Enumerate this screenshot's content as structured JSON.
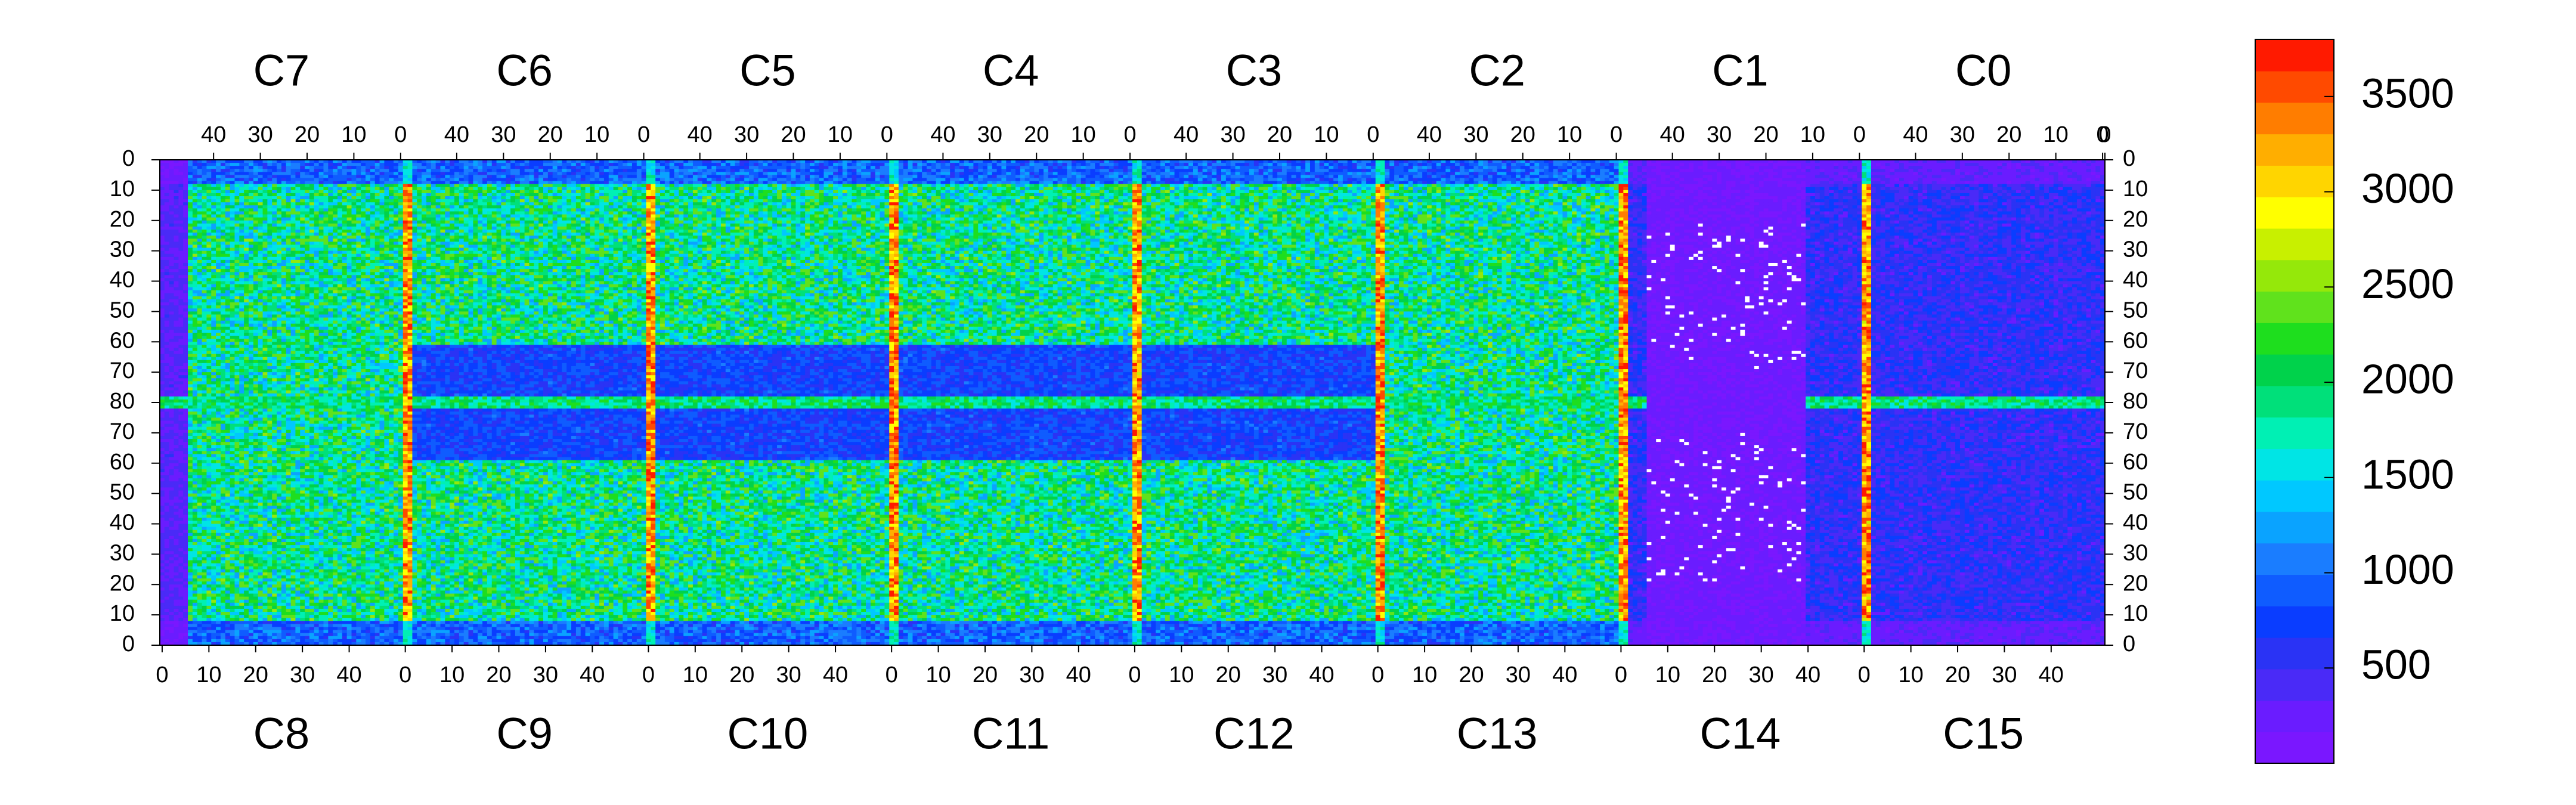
{
  "chart_data": {
    "type": "heatmap",
    "title": "",
    "xlabel": "",
    "ylabel": "",
    "top_chips": [
      "C7",
      "C6",
      "C5",
      "C4",
      "C3",
      "C2",
      "C1",
      "C0"
    ],
    "bottom_chips": [
      "C8",
      "C9",
      "C10",
      "C11",
      "C12",
      "C13",
      "C14",
      "C15"
    ],
    "top_x_ticks": [
      "40",
      "30",
      "20",
      "10",
      "0"
    ],
    "top_x_ticks_last": [
      "40",
      "30",
      "20",
      "10",
      "0",
      "0"
    ],
    "bottom_x_ticks": [
      "0",
      "10",
      "20",
      "30",
      "40"
    ],
    "bottom_x_ticks_last": [
      "0",
      "10",
      "20",
      "30",
      "40"
    ],
    "chip_columns": 52,
    "chip_rows": 80,
    "left_y_ticks": [
      "0",
      "10",
      "20",
      "30",
      "40",
      "50",
      "60",
      "70",
      "80",
      "70",
      "60",
      "50",
      "40",
      "30",
      "20",
      "10",
      "0"
    ],
    "right_y_ticks": [
      "0",
      "10",
      "20",
      "30",
      "40",
      "50",
      "60",
      "70",
      "80",
      "70",
      "60",
      "50",
      "40",
      "30",
      "20",
      "10",
      "0"
    ],
    "colorbar": {
      "min": 0,
      "max": 3800,
      "tick_values": [
        500,
        1000,
        1500,
        2000,
        2500,
        3000,
        3500
      ],
      "tick_labels": [
        "500",
        "1000",
        "1500",
        "2000",
        "2500",
        "3000",
        "3500"
      ],
      "colors": [
        "#7a17ff",
        "#6a1cff",
        "#4a2af7",
        "#2a33f5",
        "#0a3dff",
        "#0f5cff",
        "#1a7dff",
        "#0aa3ff",
        "#00c8ff",
        "#00e5e5",
        "#00f0b4",
        "#00e07a",
        "#00d24b",
        "#1ede1e",
        "#60e21c",
        "#95e80a",
        "#c8f000",
        "#ffff00",
        "#ffd500",
        "#ffae00",
        "#ff7d00",
        "#ff4a00",
        "#ff1a00"
      ]
    },
    "z_range": [
      0,
      3800
    ],
    "grid": false,
    "legend": "colorbar-right"
  }
}
